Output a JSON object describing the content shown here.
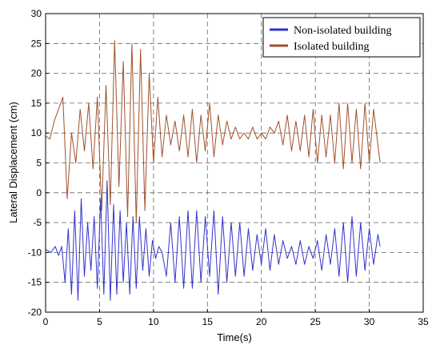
{
  "chart_data": {
    "type": "line",
    "title": "",
    "xlabel": "Time(s)",
    "ylabel": "Lateral Displacement (cm)",
    "xlim": [
      0,
      35
    ],
    "ylim": [
      -20,
      30
    ],
    "xticks": [
      0,
      5,
      10,
      15,
      20,
      25,
      30,
      35
    ],
    "yticks": [
      -20,
      -15,
      -10,
      -5,
      0,
      5,
      10,
      15,
      20,
      25,
      30
    ],
    "xtick_labels": [
      "0",
      "5",
      "10",
      "15",
      "20",
      "25",
      "30",
      "35"
    ],
    "ytick_labels": [
      "-20",
      "-15",
      "-10",
      "-5",
      "0",
      "5",
      "10",
      "15",
      "20",
      "25",
      "30"
    ],
    "grid": true,
    "legend_position": "top-right",
    "series": [
      {
        "name": "Non-isolated building",
        "color": "#3333cc",
        "x": [
          0,
          0.5,
          0.9,
          1.2,
          1.5,
          1.8,
          2.1,
          2.4,
          2.7,
          3.0,
          3.3,
          3.6,
          3.9,
          4.2,
          4.5,
          4.8,
          5.1,
          5.4,
          5.7,
          6.0,
          6.3,
          6.6,
          6.9,
          7.2,
          7.5,
          7.8,
          8.1,
          8.4,
          8.7,
          9.0,
          9.3,
          9.6,
          9.9,
          10.2,
          10.5,
          10.8,
          11.2,
          11.6,
          12.0,
          12.4,
          12.8,
          13.2,
          13.6,
          14.0,
          14.4,
          14.8,
          15.2,
          15.6,
          16.0,
          16.4,
          16.8,
          17.2,
          17.6,
          18.0,
          18.4,
          18.8,
          19.2,
          19.6,
          20.0,
          20.4,
          20.8,
          21.2,
          21.6,
          22.0,
          22.4,
          22.8,
          23.2,
          23.6,
          24.0,
          24.4,
          24.8,
          25.2,
          25.6,
          26.0,
          26.4,
          26.8,
          27.2,
          27.6,
          28.0,
          28.4,
          28.8,
          29.2,
          29.6,
          30.0,
          30.4,
          30.8,
          31.0
        ],
        "y": [
          -9.5,
          -10,
          -9,
          -10.5,
          -9,
          -15,
          -6,
          -17,
          -3,
          -18,
          -1,
          -14,
          -5,
          -13,
          -4,
          -16,
          -1,
          -17,
          2,
          -18,
          -2,
          -17,
          -3,
          -15,
          -5,
          -17,
          -4,
          -16,
          -4,
          -13,
          -6,
          -14,
          -8,
          -11,
          -9,
          -10,
          -14,
          -5,
          -15,
          -4,
          -16,
          -3,
          -16,
          -3,
          -15,
          -4,
          -14,
          -3,
          -17,
          -4,
          -15,
          -5,
          -14,
          -5,
          -14,
          -6,
          -13,
          -7,
          -12,
          -6,
          -13,
          -7,
          -12,
          -8,
          -11,
          -9,
          -12,
          -8,
          -12,
          -9,
          -11,
          -8,
          -13,
          -7,
          -12,
          -6,
          -14,
          -5,
          -15,
          -4,
          -14,
          -5,
          -13,
          -6,
          -12,
          -7,
          -9
        ]
      },
      {
        "name": "Isolated building",
        "color": "#a0522d",
        "x": [
          0,
          0.4,
          0.8,
          1.2,
          1.6,
          2.0,
          2.4,
          2.8,
          3.2,
          3.6,
          4.0,
          4.4,
          4.8,
          5.2,
          5.6,
          6.0,
          6.4,
          6.8,
          7.2,
          7.6,
          8.0,
          8.4,
          8.8,
          9.2,
          9.6,
          10.0,
          10.4,
          10.8,
          11.2,
          11.6,
          12.0,
          12.4,
          12.8,
          13.2,
          13.6,
          14.0,
          14.4,
          14.8,
          15.2,
          15.6,
          16.0,
          16.4,
          16.8,
          17.2,
          17.6,
          18.0,
          18.4,
          18.8,
          19.2,
          19.6,
          20.0,
          20.4,
          20.8,
          21.2,
          21.6,
          22.0,
          22.4,
          22.8,
          23.2,
          23.6,
          24.0,
          24.4,
          24.8,
          25.2,
          25.6,
          26.0,
          26.4,
          26.8,
          27.2,
          27.6,
          28.0,
          28.4,
          28.8,
          29.2,
          29.6,
          30.0,
          30.4,
          30.8,
          31.0
        ],
        "y": [
          9.5,
          9,
          12,
          14,
          16,
          -1,
          10,
          5,
          14,
          7,
          15,
          4,
          16,
          -3,
          18,
          -2,
          25.5,
          1,
          22,
          -4,
          25,
          -5,
          24,
          -3,
          20,
          5,
          16,
          6,
          13,
          8,
          12,
          7,
          13,
          6,
          14,
          5,
          13,
          7,
          15,
          6,
          13,
          8,
          12,
          9,
          11,
          9,
          10,
          9,
          11,
          9,
          10,
          9,
          11,
          10,
          12,
          8,
          13,
          7,
          12,
          7,
          13,
          6,
          14,
          5,
          13,
          6,
          13,
          5,
          15,
          4,
          15,
          5,
          14,
          4,
          15,
          5,
          14,
          8,
          5
        ]
      }
    ]
  }
}
